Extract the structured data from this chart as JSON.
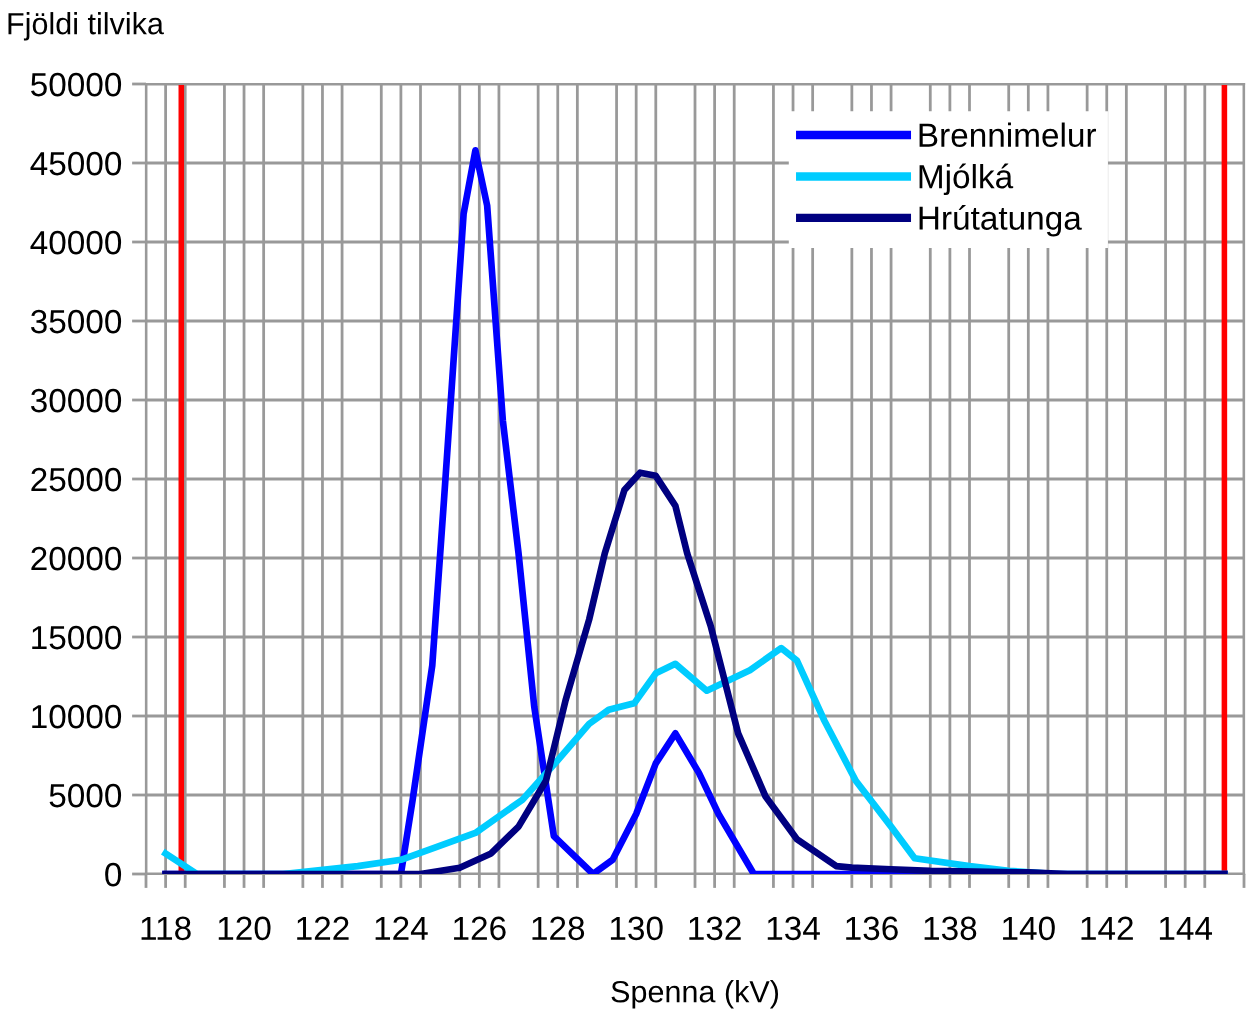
{
  "chart_data": {
    "type": "line",
    "xlabel": "Spenna (kV)",
    "ylabel": "Fjöldi tilvika",
    "xlim": [
      117.5,
      145.5
    ],
    "ylim": [
      0,
      50000
    ],
    "xticks": [
      {
        "value": 117.5,
        "label": null
      },
      {
        "value": 118,
        "label": "118"
      },
      {
        "value": 118.5,
        "label": null
      },
      {
        "value": 119.5,
        "label": null
      },
      {
        "value": 120,
        "label": "120"
      },
      {
        "value": 120.5,
        "label": null
      },
      {
        "value": 121.5,
        "label": null
      },
      {
        "value": 122,
        "label": "122"
      },
      {
        "value": 122.5,
        "label": null
      },
      {
        "value": 123.5,
        "label": null
      },
      {
        "value": 124,
        "label": "124"
      },
      {
        "value": 124.5,
        "label": null
      },
      {
        "value": 125.5,
        "label": null
      },
      {
        "value": 126,
        "label": "126"
      },
      {
        "value": 126.5,
        "label": null
      },
      {
        "value": 127.5,
        "label": null
      },
      {
        "value": 128,
        "label": "128"
      },
      {
        "value": 128.5,
        "label": null
      },
      {
        "value": 129.5,
        "label": null
      },
      {
        "value": 130,
        "label": "130"
      },
      {
        "value": 130.5,
        "label": null
      },
      {
        "value": 131.5,
        "label": null
      },
      {
        "value": 132,
        "label": "132"
      },
      {
        "value": 132.5,
        "label": null
      },
      {
        "value": 133.5,
        "label": null
      },
      {
        "value": 134,
        "label": "134"
      },
      {
        "value": 134.5,
        "label": null
      },
      {
        "value": 135.5,
        "label": null
      },
      {
        "value": 136,
        "label": "136"
      },
      {
        "value": 136.5,
        "label": null
      },
      {
        "value": 137.5,
        "label": null
      },
      {
        "value": 138,
        "label": "138"
      },
      {
        "value": 138.5,
        "label": null
      },
      {
        "value": 139.5,
        "label": null
      },
      {
        "value": 140,
        "label": "140"
      },
      {
        "value": 140.5,
        "label": null
      },
      {
        "value": 141.5,
        "label": null
      },
      {
        "value": 142,
        "label": "142"
      },
      {
        "value": 142.5,
        "label": null
      },
      {
        "value": 143.5,
        "label": null
      },
      {
        "value": 144,
        "label": "144"
      },
      {
        "value": 144.5,
        "label": null
      },
      {
        "value": 145.5,
        "label": null
      }
    ],
    "yticks": [
      0,
      5000,
      10000,
      15000,
      20000,
      25000,
      30000,
      35000,
      40000,
      45000,
      50000
    ],
    "grid": true,
    "legend": "top right",
    "marker": "none",
    "line_style": "solid",
    "ref_lines": [
      {
        "axis": "x",
        "value": 118.4,
        "label": null,
        "color": "#ff0000"
      },
      {
        "axis": "x",
        "value": 145,
        "label": null,
        "color": "#ff0000"
      }
    ],
    "series": [
      {
        "name": "Brennimelur",
        "color": "#0000ff",
        "x": [
          118,
          124,
          124.3,
          124.8,
          125.1,
          125.6,
          125.9,
          126.2,
          126.6,
          127,
          127.4,
          127.9,
          128.9,
          129.4,
          130,
          130.5,
          131,
          131.6,
          132.1,
          133,
          145
        ],
        "values": [
          0,
          0,
          4700,
          13200,
          23700,
          41800,
          45800,
          42300,
          28700,
          20300,
          10600,
          2400,
          0,
          900,
          3800,
          7000,
          8900,
          6400,
          3800,
          0,
          0
        ]
      },
      {
        "name": "Mjólká",
        "color": "#00ccff",
        "x": [
          118,
          118.8,
          121,
          122.9,
          124,
          124.9,
          125.9,
          127.1,
          128,
          128.8,
          129.3,
          129.95,
          130.5,
          131,
          131.8,
          132.9,
          133.7,
          134.1,
          134.8,
          135.6,
          136.5,
          137.1,
          138.5,
          139.5,
          140.7,
          145
        ],
        "values": [
          1300,
          0,
          0,
          500,
          900,
          1700,
          2600,
          4700,
          7200,
          9500,
          10400,
          10800,
          12700,
          13300,
          11600,
          12900,
          14300,
          13500,
          9700,
          5900,
          3000,
          1000,
          500,
          200,
          0,
          0
        ]
      },
      {
        "name": "Hrútatunga",
        "color": "#000080",
        "x": [
          118,
          124.5,
          125.5,
          126.3,
          127,
          127.7,
          128.2,
          128.8,
          129.2,
          129.7,
          130.1,
          130.5,
          131,
          131.3,
          131.9,
          132.6,
          133.3,
          134.1,
          135.1,
          135.5,
          136.5,
          137.5,
          140,
          141,
          145
        ],
        "values": [
          0,
          0,
          400,
          1300,
          3000,
          5900,
          11000,
          16100,
          20300,
          24300,
          25400,
          25200,
          23300,
          20300,
          15700,
          8900,
          4900,
          2200,
          500,
          400,
          300,
          200,
          100,
          0,
          0
        ]
      }
    ]
  }
}
